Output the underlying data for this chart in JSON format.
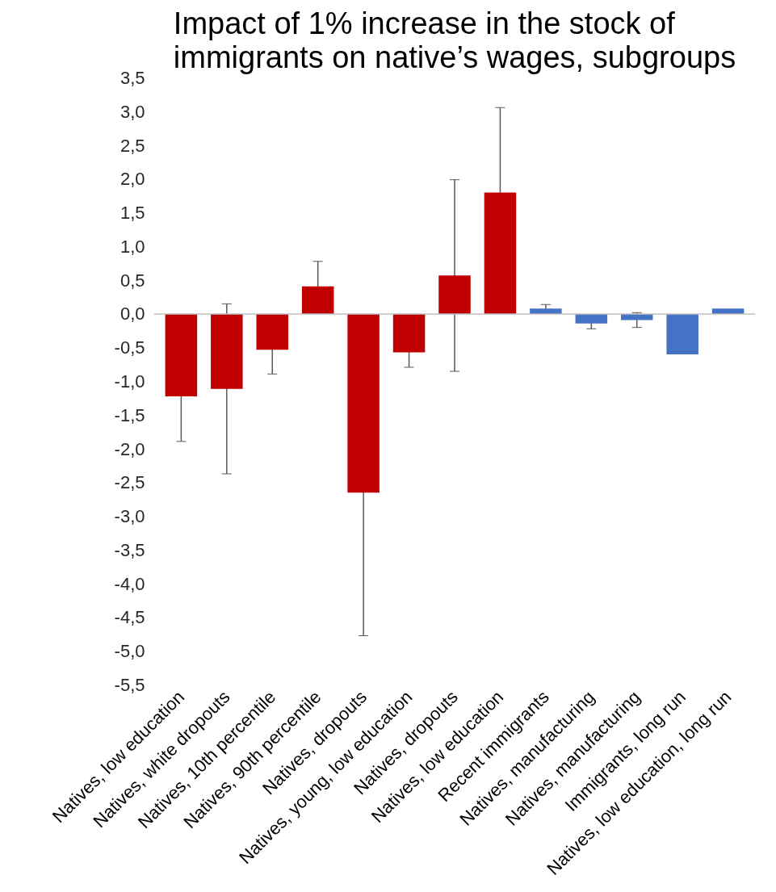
{
  "chart_data": {
    "type": "bar",
    "title": "Impact of 1% increase in the stock of immigrants on native’s wages, subgroups",
    "categories": [
      "Natives, low education",
      "Natives, white dropouts",
      "Natives, 10th percentile",
      "Natives, 90th percentile",
      "Natives, dropouts",
      "Natives, young, low education",
      "Natives, dropouts",
      "Natives, low education",
      "Recent immigrants",
      "Natives, manufacturing",
      "Natives, manufacturing",
      "Immigrants, long run",
      "Natives, low education, long run"
    ],
    "values": [
      -1.22,
      -1.11,
      -0.53,
      0.41,
      -2.65,
      -0.57,
      0.57,
      1.8,
      0.08,
      -0.14,
      -0.09,
      -0.6,
      0.08
    ],
    "colors": [
      "#c00000",
      "#c00000",
      "#c00000",
      "#c00000",
      "#c00000",
      "#c00000",
      "#c00000",
      "#c00000",
      "#4472c4",
      "#4472c4",
      "#4472c4",
      "#4472c4",
      "#4472c4"
    ],
    "errors": [
      0.67,
      1.26,
      0.36,
      0.37,
      2.12,
      0.22,
      1.42,
      1.26,
      0.06,
      0.08,
      0.11,
      null,
      null
    ],
    "ylim": [
      -5.5,
      3.5
    ],
    "yticks": [
      {
        "value": -5.5,
        "label": "-5,5"
      },
      {
        "value": -5,
        "label": "-5,0"
      },
      {
        "value": -4.5,
        "label": "-4,5"
      },
      {
        "value": -4,
        "label": "-4,0"
      },
      {
        "value": -3.5,
        "label": "-3,5"
      },
      {
        "value": -3,
        "label": "-3,0"
      },
      {
        "value": -2.5,
        "label": "-2,5"
      },
      {
        "value": -2,
        "label": "-2,0"
      },
      {
        "value": -1.5,
        "label": "-1,5"
      },
      {
        "value": -1,
        "label": "-1,0"
      },
      {
        "value": -0.5,
        "label": "-0,5"
      },
      {
        "value": 0,
        "label": "0,0"
      },
      {
        "value": 0.5,
        "label": "0,5"
      },
      {
        "value": 1,
        "label": "1,0"
      },
      {
        "value": 1.5,
        "label": "1,5"
      },
      {
        "value": 2,
        "label": "2,0"
      },
      {
        "value": 2.5,
        "label": "2,5"
      },
      {
        "value": 3,
        "label": "3,0"
      },
      {
        "value": 3.5,
        "label": "3,5"
      }
    ],
    "ref_lines": [
      {
        "axis": "y",
        "value": 0,
        "color": "#bfbfbf"
      }
    ],
    "grid": false
  }
}
